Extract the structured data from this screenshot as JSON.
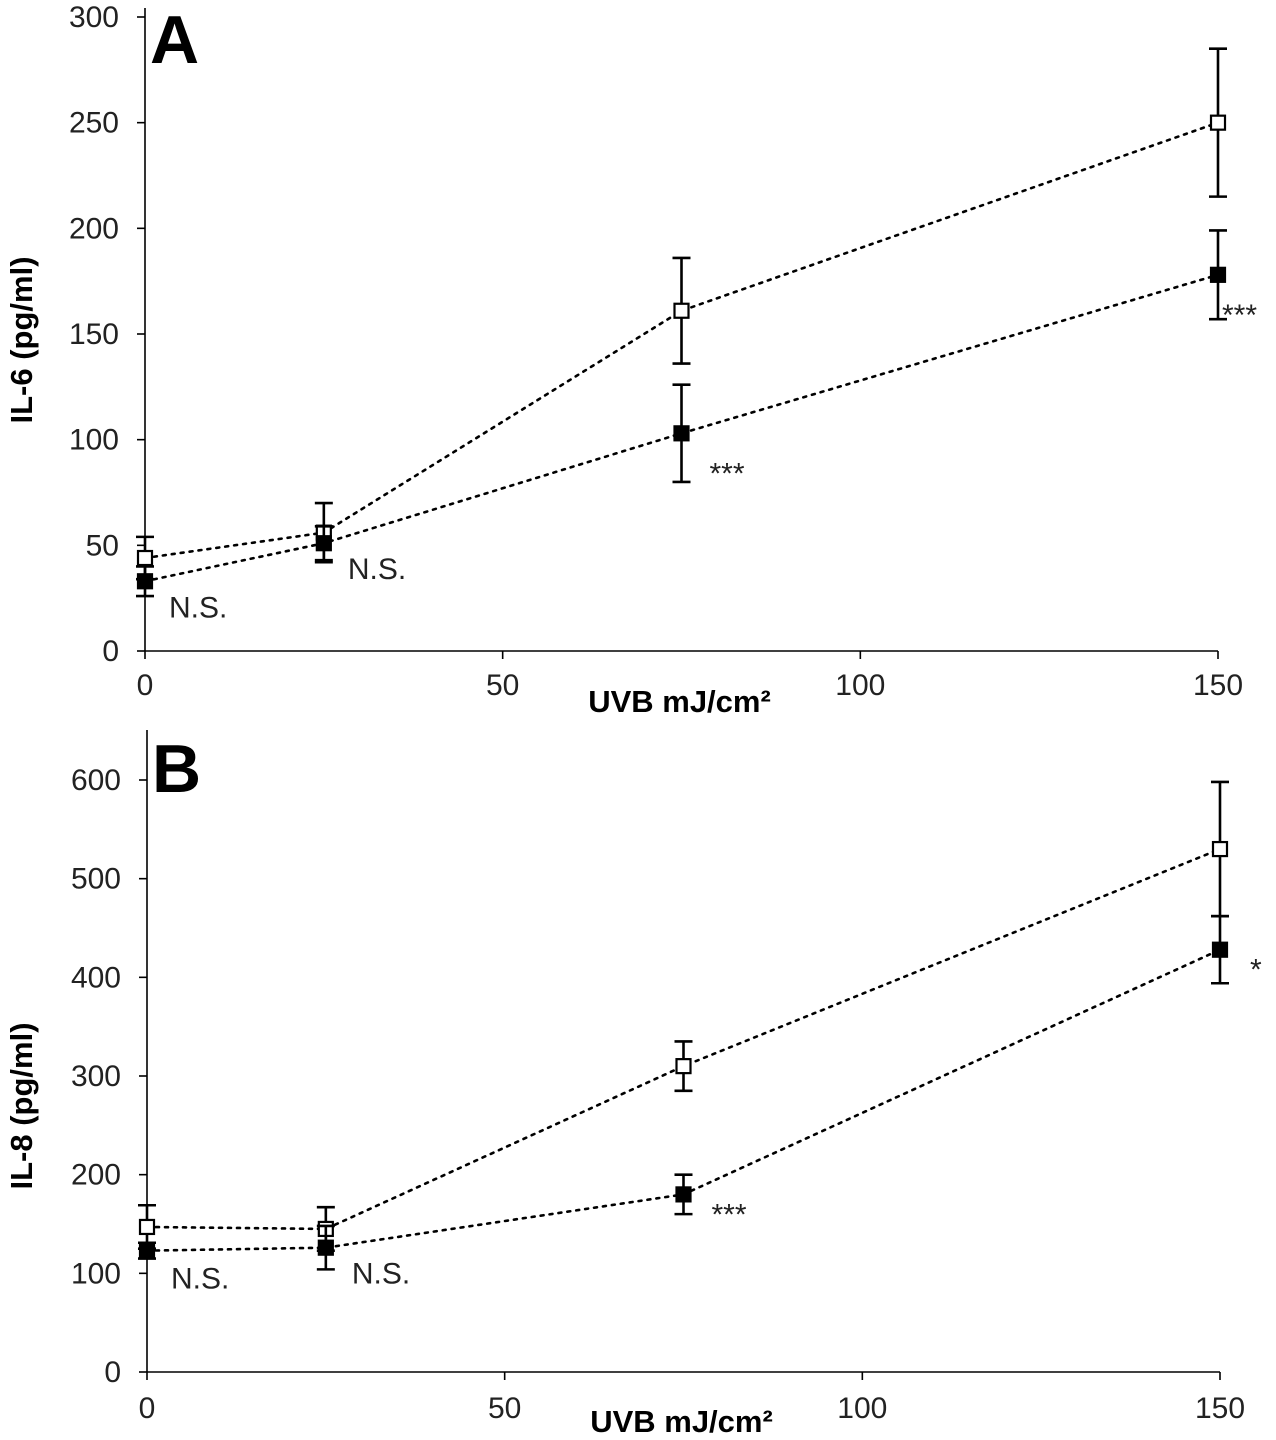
{
  "chart_data": [
    {
      "type": "line",
      "panel_label": "A",
      "xlabel": "UVB mJ/cm²",
      "ylabel": "IL-6 (pg/ml)",
      "xlim": [
        0,
        150
      ],
      "ylim": [
        0,
        300
      ],
      "xticks": [
        0,
        50,
        100,
        150
      ],
      "yticks": [
        0,
        50,
        100,
        150,
        200,
        250,
        300
      ],
      "grid": false,
      "x": [
        0,
        25,
        75,
        150
      ],
      "series": [
        {
          "marker": "open-square",
          "values": [
            44,
            56,
            161,
            250
          ],
          "errors": [
            10,
            14,
            25,
            35
          ]
        },
        {
          "marker": "filled-square",
          "values": [
            33,
            51,
            103,
            178
          ],
          "errors": [
            7,
            8,
            23,
            21
          ]
        }
      ],
      "annotations": [
        {
          "text": "N.S.",
          "x": 0
        },
        {
          "text": "N.S.",
          "x": 25
        },
        {
          "text": "***",
          "x": 75
        },
        {
          "text": "***",
          "x": 150
        }
      ]
    },
    {
      "type": "line",
      "panel_label": "B",
      "xlabel": "UVB mJ/cm²",
      "ylabel": "IL-8 (pg/ml)",
      "xlim": [
        0,
        150
      ],
      "ylim": [
        0,
        650
      ],
      "xticks": [
        0,
        50,
        100,
        150
      ],
      "yticks": [
        0,
        100,
        200,
        300,
        400,
        500,
        600
      ],
      "grid": false,
      "x": [
        0,
        25,
        75,
        150
      ],
      "series": [
        {
          "marker": "open-square",
          "values": [
            147,
            145,
            310,
            530
          ],
          "errors": [
            22,
            22,
            25,
            68
          ]
        },
        {
          "marker": "filled-square",
          "values": [
            123,
            126,
            180,
            428
          ],
          "errors": [
            8,
            22,
            20,
            34
          ]
        }
      ],
      "annotations": [
        {
          "text": "N.S.",
          "x": 0
        },
        {
          "text": "N.S.",
          "x": 25
        },
        {
          "text": "***",
          "x": 75
        },
        {
          "text": "*",
          "x": 150
        }
      ]
    }
  ]
}
